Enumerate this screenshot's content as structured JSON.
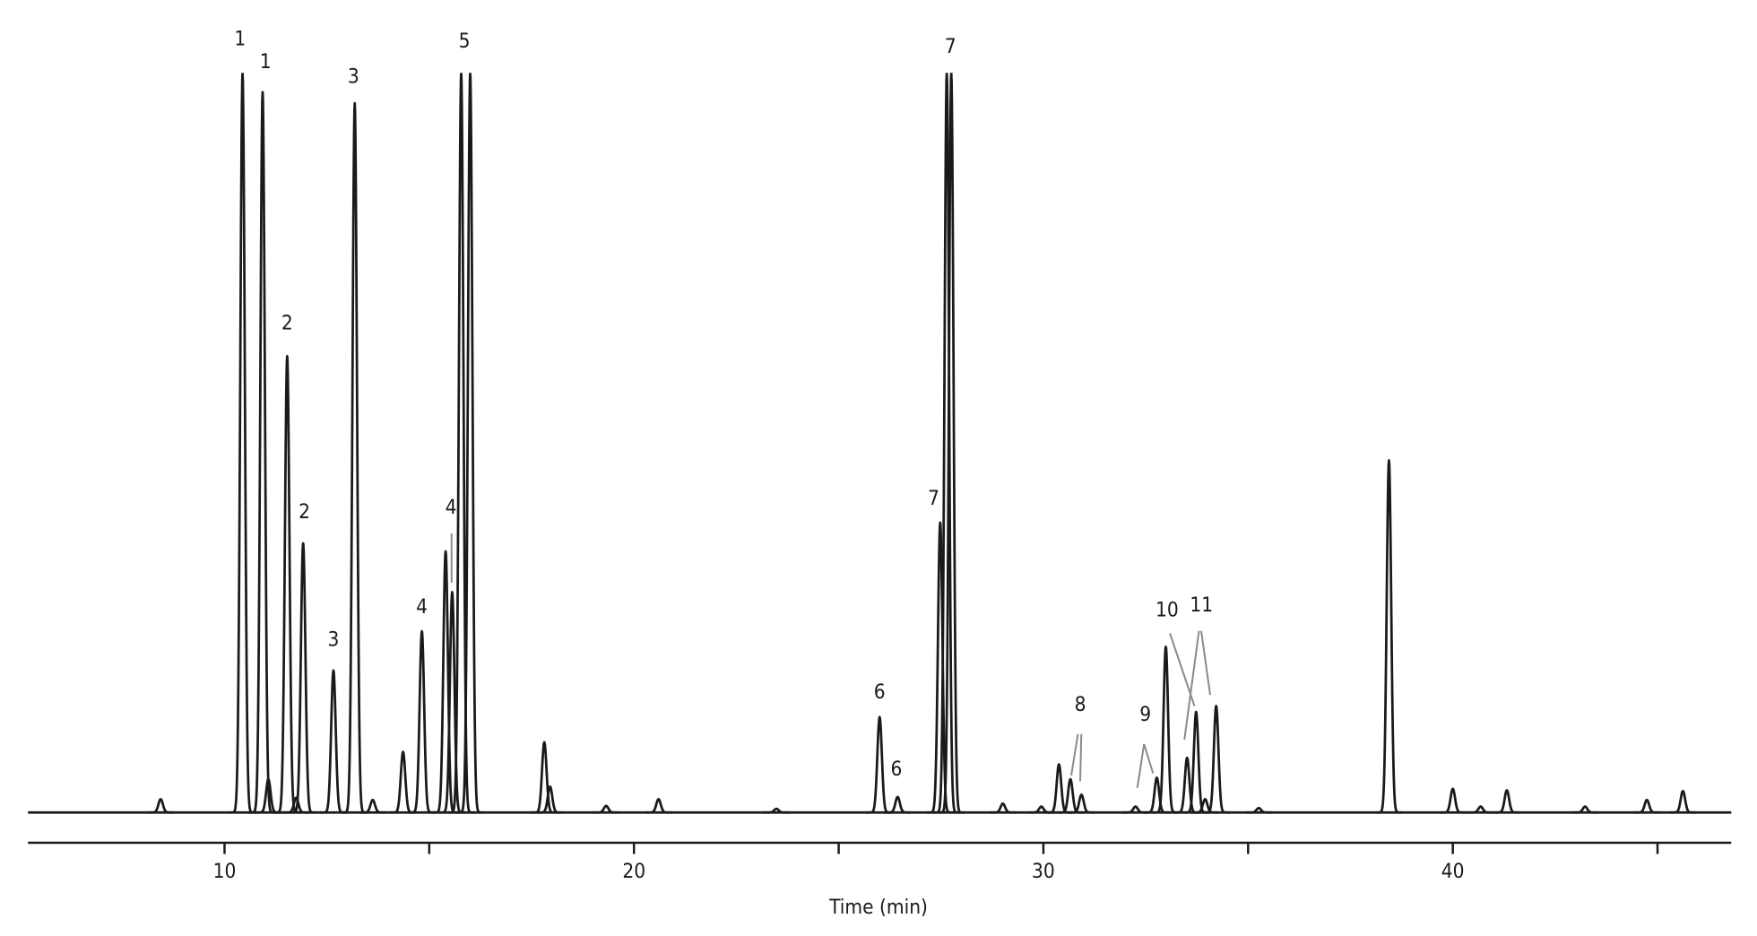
{
  "chart_data": {
    "type": "chromatogram",
    "x_label": "Time (min)",
    "color": "#1a1a1a",
    "xlim": [
      5.2,
      46.8
    ],
    "ylim": [
      0,
      100
    ],
    "xticks": [
      10,
      20,
      30,
      40
    ],
    "xminor": [
      15,
      25,
      35,
      45
    ],
    "x": [
      8.44,
      10.44,
      10.93,
      11.07,
      11.53,
      11.75,
      11.92,
      12.66,
      13.18,
      13.62,
      14.36,
      14.82,
      15.4,
      15.56,
      15.78,
      16.0,
      17.81,
      17.95,
      19.32,
      20.6,
      23.48,
      26.0,
      26.44,
      27.48,
      27.64,
      27.75,
      29.01,
      29.95,
      30.38,
      30.66,
      30.93,
      32.25,
      32.77,
      32.99,
      33.51,
      33.73,
      33.95,
      34.22,
      35.26,
      38.44,
      40.0,
      40.68,
      41.32,
      43.23,
      44.74,
      45.62
    ],
    "values": [
      1.8,
      100,
      97.4,
      4.5,
      61.7,
      2,
      36.4,
      19.2,
      95.9,
      1.7,
      8.2,
      24.5,
      35.3,
      29.8,
      100,
      100,
      9.5,
      3.5,
      0.9,
      1.8,
      0.5,
      12.9,
      2.1,
      39.2,
      100,
      100,
      1.2,
      0.8,
      6.5,
      4.5,
      2.4,
      0.8,
      4.7,
      22.4,
      7.4,
      13.6,
      1.8,
      14.4,
      0.6,
      47.6,
      3.2,
      0.8,
      3.0,
      0.8,
      1.7,
      2.9
    ],
    "annotations": [
      {
        "text": "1",
        "x": 10.38,
        "y": 104.5
      },
      {
        "text": "1",
        "x": 11.0,
        "y": 101.4
      },
      {
        "text": "2",
        "x": 11.53,
        "y": 66.1
      },
      {
        "text": "2",
        "x": 11.95,
        "y": 40.6
      },
      {
        "text": "3",
        "x": 13.15,
        "y": 99.4
      },
      {
        "text": "3",
        "x": 12.66,
        "y": 23.3
      },
      {
        "text": "4",
        "x": 14.82,
        "y": 27.7
      },
      {
        "text": "4",
        "x": 15.53,
        "y": 41.2
      },
      {
        "text": "5",
        "x": 15.86,
        "y": 104.2
      },
      {
        "text": "6",
        "x": 26.0,
        "y": 16.2
      },
      {
        "text": "6",
        "x": 26.41,
        "y": 5.8
      },
      {
        "text": "7",
        "x": 27.73,
        "y": 103.5
      },
      {
        "text": "7",
        "x": 27.32,
        "y": 42.4
      },
      {
        "text": "8",
        "x": 30.9,
        "y": 14.5
      },
      {
        "text": "9",
        "x": 32.49,
        "y": 13.2
      },
      {
        "text": "10",
        "x": 33.02,
        "y": 27.3
      },
      {
        "text": "11",
        "x": 33.86,
        "y": 28.0
      }
    ]
  }
}
